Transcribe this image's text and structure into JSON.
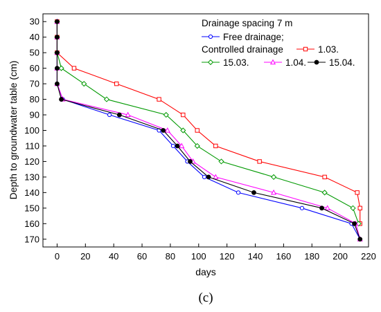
{
  "chart_data": {
    "type": "line",
    "xlabel": "days",
    "ylabel": "Depth to groundwater table (cm)",
    "xlim": [
      -10,
      220
    ],
    "ylim": [
      25,
      175
    ],
    "y_inverted": true,
    "grid": false,
    "x_ticks": [
      "0",
      "20",
      "40",
      "60",
      "80",
      "100",
      "120",
      "140",
      "160",
      "180",
      "200",
      "220"
    ],
    "y_ticks": [
      "30",
      "40",
      "50",
      "60",
      "70",
      "80",
      "90",
      "100",
      "110",
      "120",
      "130",
      "140",
      "150",
      "160",
      "170"
    ],
    "legend_position": "top-right",
    "legend_heading": "Drainage spacing 7 m",
    "legend_group_label": "Controlled drainage",
    "series": [
      {
        "name": "Free drainage;",
        "color": "#0000ff",
        "marker": "circle-open",
        "x": [
          0,
          0,
          0,
          0,
          0,
          4,
          37,
          72,
          82,
          92,
          104,
          128,
          173,
          208,
          214
        ],
        "y": [
          30,
          40,
          50,
          60,
          70,
          80,
          90,
          100,
          110,
          120,
          130,
          140,
          150,
          160,
          170
        ]
      },
      {
        "name": "1.03.",
        "color": "#ff0000",
        "marker": "square-open",
        "x": [
          0,
          0,
          0,
          12,
          42,
          72,
          89,
          99,
          112,
          143,
          189,
          212,
          214,
          214
        ],
        "y": [
          30,
          40,
          50,
          60,
          70,
          80,
          90,
          100,
          110,
          120,
          130,
          140,
          150,
          160
        ]
      },
      {
        "name": "15.03.",
        "color": "#009900",
        "marker": "diamond-open",
        "x": [
          0,
          0,
          0,
          3,
          19,
          35,
          77,
          89,
          99,
          116,
          153,
          189,
          209,
          213
        ],
        "y": [
          30,
          40,
          50,
          60,
          70,
          80,
          90,
          100,
          110,
          120,
          130,
          140,
          150,
          160
        ]
      },
      {
        "name": "1.04.",
        "color": "#ff00ff",
        "marker": "triangle-open",
        "x": [
          0,
          0,
          0,
          0,
          0,
          4,
          50,
          78,
          88,
          96,
          112,
          153,
          191,
          211,
          214
        ],
        "y": [
          30,
          40,
          50,
          60,
          70,
          80,
          90,
          100,
          110,
          120,
          130,
          140,
          150,
          160,
          170
        ]
      },
      {
        "name": "15.04.",
        "color": "#000000",
        "marker": "circle-filled",
        "x": [
          0,
          0,
          0,
          0,
          0,
          3,
          44,
          75,
          85,
          94,
          107,
          139,
          187,
          210,
          214
        ],
        "y": [
          30,
          40,
          50,
          60,
          70,
          80,
          90,
          100,
          110,
          120,
          130,
          140,
          150,
          160,
          170
        ]
      }
    ],
    "caption": "(c)"
  }
}
